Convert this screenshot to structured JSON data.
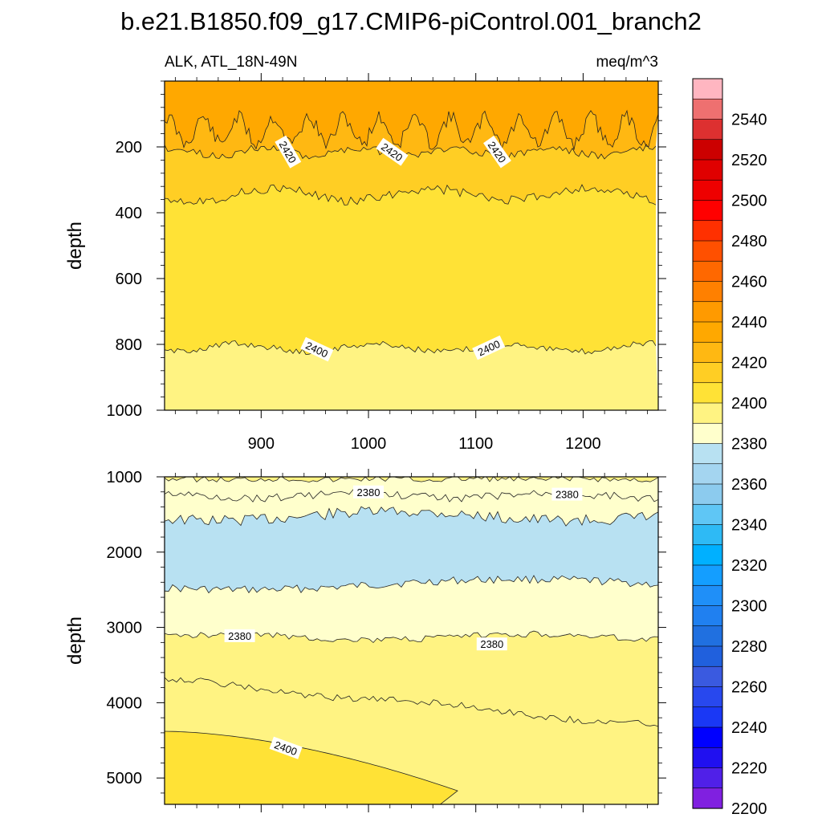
{
  "title": "b.e21.B1850.f09_g17.CMIP6-piControl.001_branch2",
  "left_subtitle": "ALK, ATL_18N-49N",
  "right_subtitle": "meq/m^3",
  "colors": {
    "c2380": "#ffffcc",
    "c2390": "#fff382",
    "c2400": "#ffe236",
    "c2410": "#ffce24",
    "c2420": "#ffb812",
    "c2430": "#ffa800",
    "c2350": "#b8e1f2",
    "c2340": "#a4d5f0"
  },
  "chart_data": [
    {
      "type": "contour",
      "panel": "top",
      "ylabel": "depth",
      "xlim": [
        810,
        1270
      ],
      "ylim": [
        1000,
        0
      ],
      "x_ticks": [
        900,
        1000,
        1100,
        1200
      ],
      "x_tick_labels": [
        "900",
        "1000",
        "1100",
        "1200"
      ],
      "y_ticks": [
        200,
        400,
        600,
        800,
        1000
      ],
      "y_tick_labels": [
        "200",
        "400",
        "600",
        "800",
        "1000"
      ],
      "contour_levels": [
        2390,
        2400,
        2410,
        2420,
        2430
      ],
      "contour_labels": [
        {
          "text": "2420",
          "x": 925,
          "y": 215,
          "angle": 60
        },
        {
          "text": "2420",
          "x": 1022,
          "y": 215,
          "angle": 35
        },
        {
          "text": "2420",
          "x": 1120,
          "y": 215,
          "angle": 55
        },
        {
          "text": "2400",
          "x": 952,
          "y": 815,
          "angle": 25
        },
        {
          "text": "2400",
          "x": 1112,
          "y": 810,
          "angle": -25
        }
      ]
    },
    {
      "type": "contour",
      "panel": "bottom",
      "ylabel": "depth",
      "xlim": [
        810,
        1270
      ],
      "ylim": [
        5350,
        1000
      ],
      "y_ticks": [
        1000,
        2000,
        3000,
        4000,
        5000
      ],
      "y_tick_labels": [
        "1000",
        "2000",
        "3000",
        "4000",
        "5000"
      ],
      "contour_levels": [
        2350,
        2360,
        2370,
        2380,
        2390,
        2400
      ],
      "contour_labels": [
        {
          "text": "2380",
          "x": 1000,
          "y": 1200,
          "angle": 0
        },
        {
          "text": "2380",
          "x": 1185,
          "y": 1230,
          "angle": 0
        },
        {
          "text": "2380",
          "x": 880,
          "y": 3110,
          "angle": 0
        },
        {
          "text": "2380",
          "x": 1115,
          "y": 3220,
          "angle": 0
        },
        {
          "text": "2400",
          "x": 923,
          "y": 4600,
          "angle": 20
        }
      ]
    }
  ],
  "colorbar": {
    "levels": [
      "2540",
      "2520",
      "2500",
      "2480",
      "2460",
      "2440",
      "2420",
      "2400",
      "2380",
      "2360",
      "2340",
      "2320",
      "2300",
      "2280",
      "2260",
      "2240",
      "2220",
      "2200"
    ],
    "colors": [
      "#ffb6c1",
      "#ee7070",
      "#dd3030",
      "#cc0000",
      "#e00000",
      "#ee0000",
      "#ff0000",
      "#ff3000",
      "#ff5000",
      "#ff6800",
      "#ff8000",
      "#ff9a00",
      "#ffa800",
      "#ffb812",
      "#ffce24",
      "#ffe236",
      "#fff382",
      "#ffffcc",
      "#b8e1f2",
      "#a4d5f0",
      "#8ccbee",
      "#5fc6f5",
      "#2ebaf5",
      "#00b0ff",
      "#149eff",
      "#1f8ff8",
      "#2080f0",
      "#2070e0",
      "#2060dd",
      "#3a5ae0",
      "#2848ee",
      "#1a38f5",
      "#0000ff",
      "#2010f0",
      "#5020e8",
      "#8020e0"
    ]
  }
}
